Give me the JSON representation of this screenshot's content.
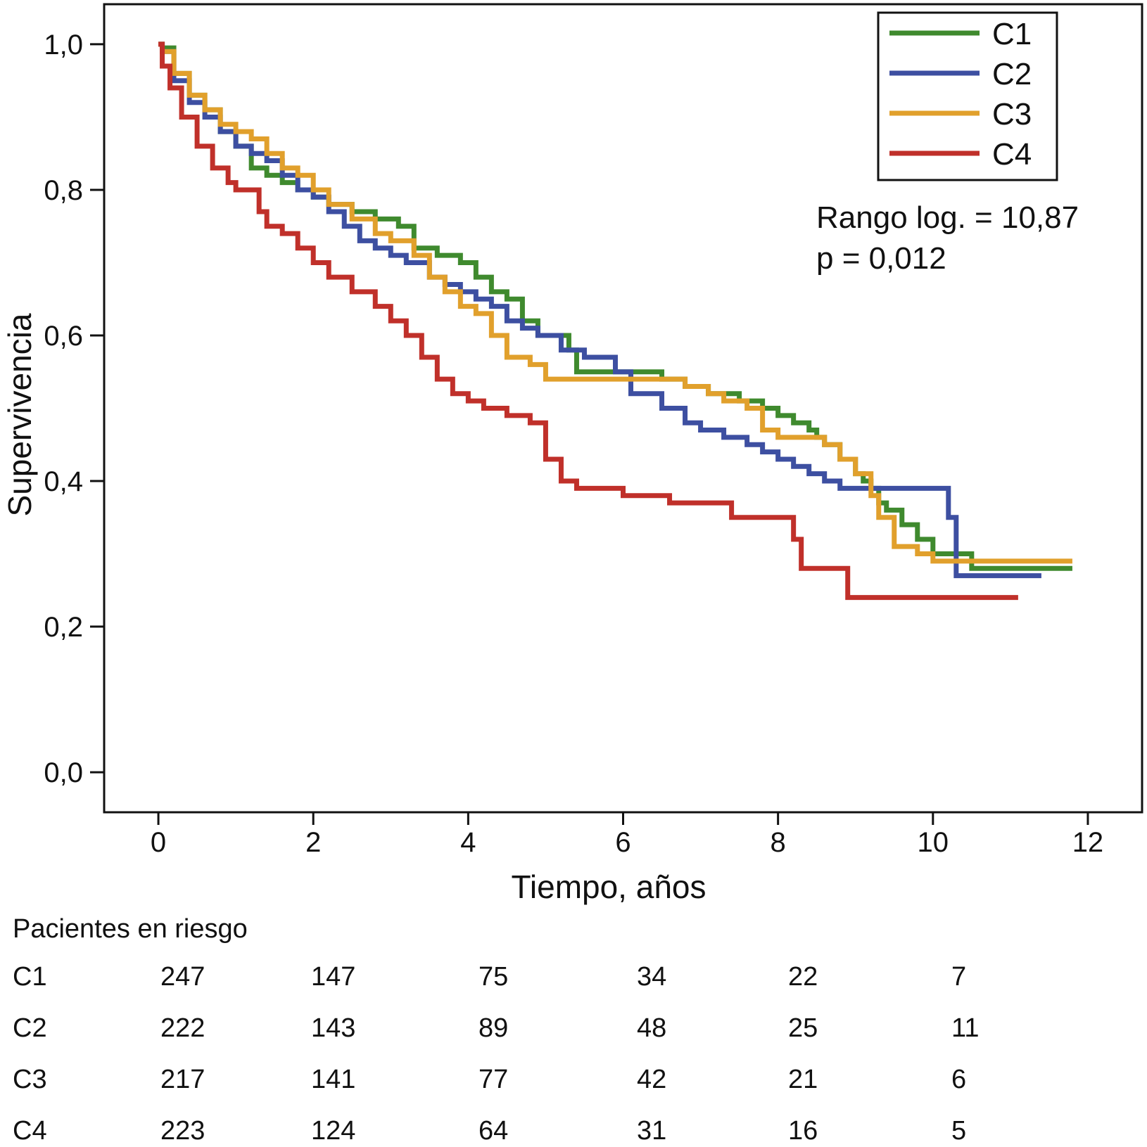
{
  "chart_data": {
    "type": "line",
    "subtype": "kaplan-meier",
    "xlabel": "Tiempo, años",
    "ylabel": "Supervivencia",
    "xlim": [
      -0.7,
      12.7
    ],
    "ylim": [
      -0.055,
      1.055
    ],
    "xticks": [
      0,
      2,
      4,
      6,
      8,
      10,
      12
    ],
    "xtick_labels": [
      "0",
      "2",
      "4",
      "6",
      "8",
      "10",
      "12"
    ],
    "yticks": [
      0.0,
      0.2,
      0.4,
      0.6,
      0.8,
      1.0
    ],
    "ytick_labels": [
      "0,0",
      "0,2",
      "0,4",
      "0,6",
      "0,8",
      "1,0"
    ],
    "grid": false,
    "legend_position": "top-right",
    "annotation": {
      "line1": "Rango log. = 10,87",
      "line2": "p = 0,012"
    },
    "series": [
      {
        "name": "C1",
        "color": "#3f8a2e",
        "x": [
          0,
          0.05,
          0.2,
          0.4,
          0.6,
          0.8,
          1.0,
          1.2,
          1.4,
          1.6,
          1.8,
          2.0,
          2.2,
          2.5,
          2.8,
          3.1,
          3.3,
          3.6,
          3.9,
          4.1,
          4.3,
          4.5,
          4.7,
          4.9,
          5.3,
          5.4,
          5.8,
          6.5,
          6.8,
          7.1,
          7.5,
          7.8,
          8.0,
          8.2,
          8.4,
          8.5,
          8.6,
          8.8,
          9.0,
          9.1,
          9.2,
          9.3,
          9.4,
          9.6,
          9.8,
          10.0,
          10.5,
          11.0,
          11.5,
          11.8
        ],
        "y": [
          1.0,
          0.995,
          0.96,
          0.93,
          0.91,
          0.88,
          0.86,
          0.83,
          0.82,
          0.81,
          0.8,
          0.79,
          0.78,
          0.77,
          0.76,
          0.75,
          0.72,
          0.71,
          0.7,
          0.68,
          0.66,
          0.65,
          0.62,
          0.6,
          0.58,
          0.55,
          0.55,
          0.54,
          0.53,
          0.52,
          0.51,
          0.5,
          0.49,
          0.48,
          0.47,
          0.46,
          0.45,
          0.43,
          0.41,
          0.4,
          0.39,
          0.37,
          0.36,
          0.34,
          0.32,
          0.3,
          0.28,
          0.28,
          0.28,
          0.28
        ]
      },
      {
        "name": "C2",
        "color": "#3d4fa1",
        "x": [
          0,
          0.05,
          0.2,
          0.4,
          0.6,
          0.8,
          1.0,
          1.2,
          1.4,
          1.6,
          1.8,
          2.0,
          2.2,
          2.4,
          2.6,
          2.8,
          3.0,
          3.2,
          3.5,
          3.7,
          3.9,
          4.1,
          4.3,
          4.5,
          4.7,
          4.9,
          5.2,
          5.5,
          5.9,
          6.1,
          6.5,
          6.8,
          7.0,
          7.3,
          7.6,
          7.8,
          8.0,
          8.2,
          8.4,
          8.6,
          8.8,
          9.0,
          9.2,
          9.5,
          9.8,
          10.0,
          10.2,
          10.3,
          10.8,
          11.4
        ],
        "y": [
          1.0,
          0.99,
          0.95,
          0.92,
          0.9,
          0.88,
          0.86,
          0.85,
          0.84,
          0.82,
          0.8,
          0.79,
          0.77,
          0.75,
          0.73,
          0.72,
          0.71,
          0.7,
          0.68,
          0.67,
          0.66,
          0.65,
          0.64,
          0.62,
          0.61,
          0.6,
          0.58,
          0.57,
          0.55,
          0.52,
          0.5,
          0.48,
          0.47,
          0.46,
          0.45,
          0.44,
          0.43,
          0.42,
          0.41,
          0.4,
          0.39,
          0.39,
          0.39,
          0.39,
          0.39,
          0.39,
          0.35,
          0.27,
          0.27,
          0.27
        ]
      },
      {
        "name": "C3",
        "color": "#e1a02c",
        "x": [
          0,
          0.05,
          0.2,
          0.4,
          0.6,
          0.8,
          1.0,
          1.2,
          1.4,
          1.6,
          1.8,
          2.0,
          2.2,
          2.5,
          2.8,
          3.0,
          3.3,
          3.5,
          3.7,
          3.9,
          4.1,
          4.3,
          4.5,
          4.8,
          5.0,
          5.3,
          5.6,
          6.0,
          6.4,
          6.8,
          7.1,
          7.3,
          7.6,
          7.8,
          8.0,
          8.3,
          8.6,
          8.8,
          9.0,
          9.2,
          9.3,
          9.5,
          9.8,
          10.0,
          10.5,
          11.0,
          11.5,
          11.8
        ],
        "y": [
          1.0,
          0.99,
          0.96,
          0.93,
          0.91,
          0.89,
          0.88,
          0.87,
          0.85,
          0.83,
          0.82,
          0.8,
          0.78,
          0.76,
          0.74,
          0.73,
          0.71,
          0.68,
          0.66,
          0.64,
          0.63,
          0.6,
          0.57,
          0.56,
          0.54,
          0.54,
          0.54,
          0.54,
          0.54,
          0.53,
          0.52,
          0.51,
          0.5,
          0.47,
          0.46,
          0.46,
          0.45,
          0.43,
          0.41,
          0.38,
          0.35,
          0.31,
          0.3,
          0.29,
          0.29,
          0.29,
          0.29,
          0.29
        ]
      },
      {
        "name": "C4",
        "color": "#c0302a",
        "x": [
          0,
          0.05,
          0.15,
          0.3,
          0.5,
          0.7,
          0.9,
          1.0,
          1.3,
          1.4,
          1.6,
          1.8,
          2.0,
          2.2,
          2.5,
          2.8,
          3.0,
          3.2,
          3.4,
          3.6,
          3.8,
          4.0,
          4.2,
          4.5,
          4.8,
          5.0,
          5.2,
          5.4,
          5.7,
          6.0,
          6.3,
          6.6,
          7.0,
          7.4,
          7.8,
          8.1,
          8.2,
          8.3,
          8.6,
          8.8,
          8.9,
          9.5,
          10.0,
          10.5,
          11.1
        ],
        "y": [
          1.0,
          0.97,
          0.94,
          0.9,
          0.86,
          0.83,
          0.81,
          0.8,
          0.77,
          0.75,
          0.74,
          0.72,
          0.7,
          0.68,
          0.66,
          0.64,
          0.62,
          0.6,
          0.57,
          0.54,
          0.52,
          0.51,
          0.5,
          0.49,
          0.48,
          0.43,
          0.4,
          0.39,
          0.39,
          0.38,
          0.38,
          0.37,
          0.37,
          0.35,
          0.35,
          0.35,
          0.32,
          0.28,
          0.28,
          0.28,
          0.24,
          0.24,
          0.24,
          0.24,
          0.24
        ]
      }
    ]
  },
  "risk_table": {
    "title": "Pacientes en riesgo",
    "rows": [
      {
        "label": "C1",
        "values": [
          "247",
          "147",
          "75",
          "34",
          "22",
          "7"
        ]
      },
      {
        "label": "C2",
        "values": [
          "222",
          "143",
          "89",
          "48",
          "25",
          "11"
        ]
      },
      {
        "label": "C3",
        "values": [
          "217",
          "141",
          "77",
          "42",
          "21",
          "6"
        ]
      },
      {
        "label": "C4",
        "values": [
          "223",
          "124",
          "64",
          "31",
          "16",
          "5"
        ]
      }
    ]
  }
}
